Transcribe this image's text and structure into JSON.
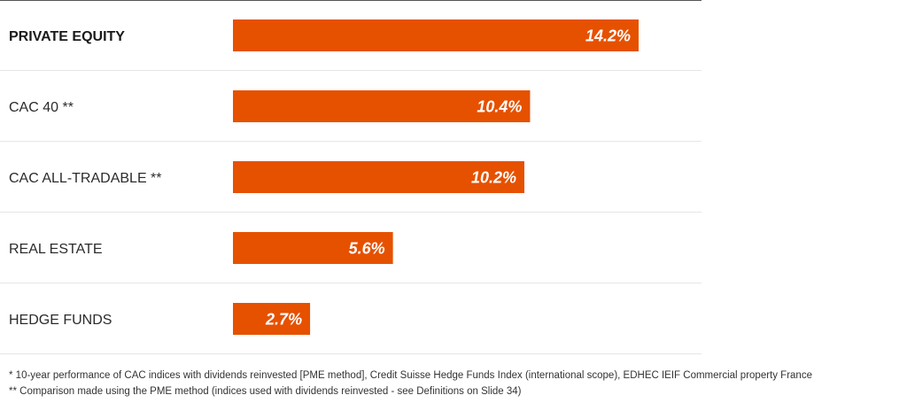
{
  "chart_data": {
    "type": "bar",
    "orientation": "horizontal",
    "categories": [
      "PRIVATE EQUITY",
      "CAC 40 **",
      "CAC ALL-TRADABLE **",
      "REAL ESTATE",
      "HEDGE FUNDS"
    ],
    "values": [
      14.2,
      10.4,
      10.2,
      5.6,
      2.7
    ],
    "value_labels": [
      "14.2%",
      "10.4%",
      "10.2%",
      "5.6%",
      "2.7%"
    ],
    "unit": "%",
    "bold_categories": [
      "PRIVATE EQUITY"
    ],
    "bar_color": "#E65100",
    "grid": false
  },
  "footnotes": {
    "note1": "* 10-year performance of CAC indices with dividends reinvested [PME method], Credit Suisse Hedge Funds Index (international scope), EDHEC IEIF Commercial property France",
    "note2": "** Comparison made using the PME method (indices used with dividends reinvested - see Definitions on Slide 34)"
  }
}
